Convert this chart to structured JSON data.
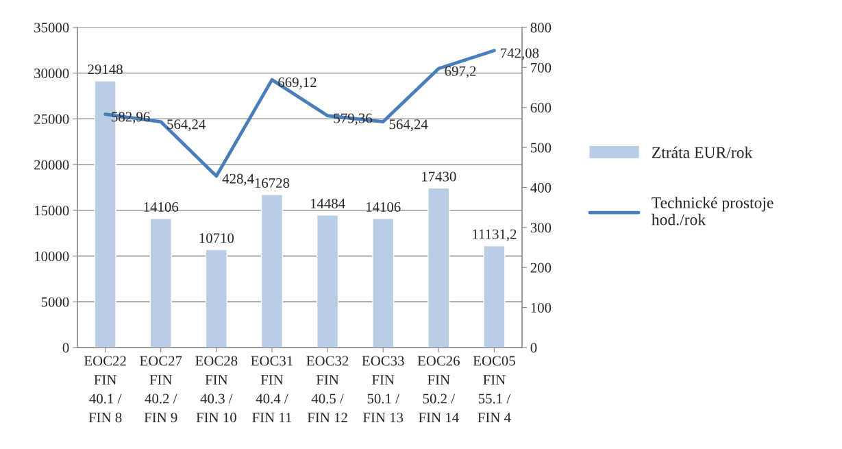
{
  "chart_data": {
    "type": "bar",
    "categories": [
      "EOC22\nFIN\n40.1 /\nFIN 8",
      "EOC27\nFIN\n40.2 /\nFIN 9",
      "EOC28\nFIN\n40.3 /\nFIN 10",
      "EOC31\nFIN\n40.4 /\nFIN 11",
      "EOC32\nFIN\n40.5 /\nFIN 12",
      "EOC33\nFIN\n50.1 /\nFIN 13",
      "EOC26\nFIN\n50.2 /\nFIN 14",
      "EOC05\nFIN\n55.1 /\nFIN 4"
    ],
    "series": [
      {
        "name": "Ztráta EUR/rok",
        "color": "#b9cde5",
        "values": [
          29148,
          14106,
          10710,
          16728,
          14484,
          14106,
          17430,
          11131.2
        ],
        "value_labels": [
          "29148",
          "14106",
          "10710",
          "16728",
          "14484",
          "14106",
          "17430",
          "11131,2"
        ]
      },
      {
        "name": "Technické prostoje hod./rok",
        "type": "line",
        "axis": "y2",
        "color": "#4a7ebb",
        "values": [
          582.96,
          564.24,
          428.4,
          669.12,
          579.36,
          564.24,
          697.2,
          742.08
        ],
        "value_labels": [
          "582,96",
          "564,24",
          "428,4",
          "669,12",
          "579,36",
          "564,24",
          "697,2",
          "742,08"
        ]
      }
    ],
    "ylim": [
      0,
      35000
    ],
    "yticks": [
      0,
      5000,
      10000,
      15000,
      20000,
      25000,
      30000,
      35000
    ],
    "y2lim": [
      0,
      800
    ],
    "y2ticks": [
      0,
      100,
      200,
      300,
      400,
      500,
      600,
      700,
      800
    ],
    "grid": "y",
    "legend": "right",
    "marker": "none",
    "line_style": "solid"
  }
}
